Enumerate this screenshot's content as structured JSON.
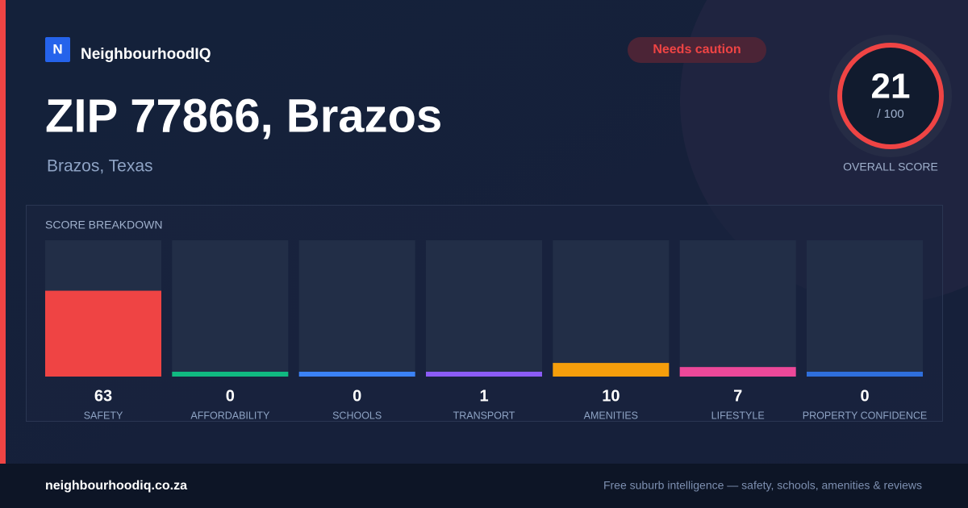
{
  "brand": {
    "logo": "N",
    "name": "NeighbourhoodIQ"
  },
  "badge": "Needs caution",
  "title": "ZIP 77866, Brazos",
  "subtitle": "Brazos, Texas",
  "score": {
    "value": 21,
    "out_of": "/ 100",
    "label": "OVERALL SCORE"
  },
  "chart_data": {
    "type": "bar",
    "title": "SCORE BREAKDOWN",
    "categories": [
      "SAFETY",
      "AFFORDABILITY",
      "SCHOOLS",
      "TRANSPORT",
      "AMENITIES",
      "LIFESTYLE",
      "PROPERTY CONFIDENCE"
    ],
    "values": [
      63,
      0,
      0,
      1,
      10,
      7,
      0
    ],
    "colors": [
      "#ef4444",
      "#10b981",
      "#3b82f6",
      "#8b5cf6",
      "#f59e0b",
      "#ec4899",
      "#2f6fdc"
    ],
    "ylim": [
      0,
      100
    ]
  },
  "footer": {
    "site": "neighbourhoodiq.co.za",
    "tagline": "Free suburb intelligence — safety, schools, amenities & reviews"
  }
}
